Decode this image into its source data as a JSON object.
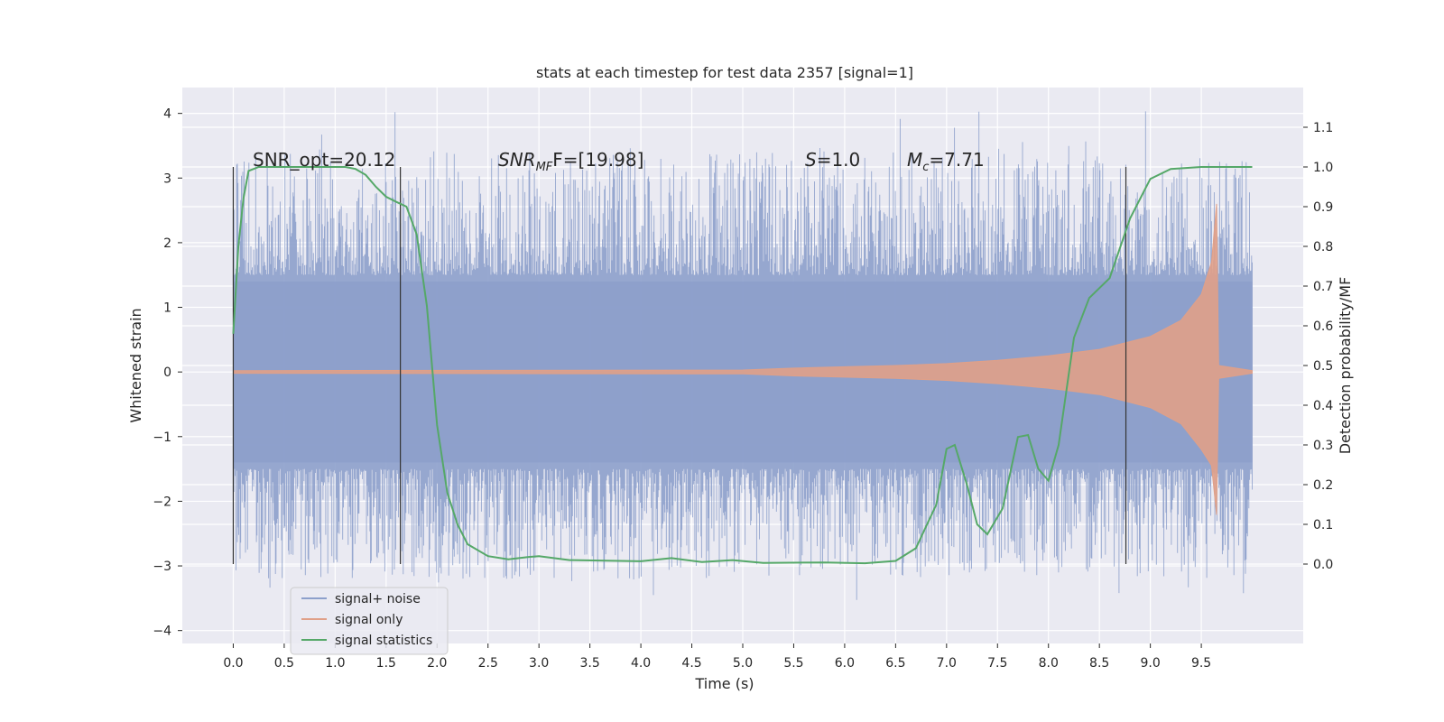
{
  "chart_data": {
    "type": "line",
    "title": "stats at each timestep for test data 2357 [signal=1]",
    "xlabel": "Time (s)",
    "ylabel": "Whitened strain",
    "y2label": "Detection probability/MF",
    "xlim": [
      -0.5,
      10.5
    ],
    "ylim": [
      -4.2,
      4.4
    ],
    "y2lim": [
      -0.2,
      1.2
    ],
    "x_ticks": [
      "0.0",
      "0.5",
      "1.0",
      "1.5",
      "2.0",
      "2.5",
      "3.0",
      "3.5",
      "4.0",
      "4.5",
      "5.0",
      "5.5",
      "6.0",
      "6.5",
      "7.0",
      "7.5",
      "8.0",
      "8.5",
      "9.0",
      "9.5"
    ],
    "y_ticks": [
      "4",
      "3",
      "2",
      "1",
      "0",
      "−1",
      "−2",
      "−3",
      "−4"
    ],
    "y2_ticks": [
      "1.1",
      "1.0",
      "0.9",
      "0.8",
      "0.7",
      "0.6",
      "0.5",
      "0.4",
      "0.3",
      "0.2",
      "0.1",
      "0.0"
    ],
    "grid": true,
    "legend_position": "lower-left",
    "annotations": {
      "snr_opt": "SNR_opt=20.12",
      "snr_mf_italic": "SNR",
      "snr_mf_sub": "MF",
      "snr_mf_rest": "F=[19.98]",
      "s_italic": "S",
      "s_rest": "=1.0",
      "mc_italic": "M",
      "mc_sub": "c",
      "mc_rest": "=7.71"
    },
    "vertical_markers_s": [
      0.0,
      1.64,
      8.76
    ],
    "series": [
      {
        "name": "signal+ noise",
        "color": "#8da0cb",
        "envelope": {
          "t": [
            0.0,
            10.0
          ],
          "core_amp": 1.4,
          "spike_max": 4.05,
          "spike_min": -3.65
        }
      },
      {
        "name": "signal only",
        "color": "#e0a088",
        "chirp_envelope": [
          [
            0.0,
            0.02
          ],
          [
            5.0,
            0.03
          ],
          [
            5.5,
            0.06
          ],
          [
            6.0,
            0.08
          ],
          [
            6.5,
            0.1
          ],
          [
            7.0,
            0.13
          ],
          [
            7.5,
            0.18
          ],
          [
            8.0,
            0.25
          ],
          [
            8.5,
            0.35
          ],
          [
            9.0,
            0.55
          ],
          [
            9.3,
            0.8
          ],
          [
            9.5,
            1.2
          ],
          [
            9.6,
            1.7
          ],
          [
            9.65,
            2.6
          ],
          [
            9.67,
            0.1
          ],
          [
            10.0,
            0.02
          ]
        ]
      },
      {
        "name": "signal statistics",
        "color": "#55a868",
        "points": [
          [
            0.0,
            0.58
          ],
          [
            0.05,
            0.8
          ],
          [
            0.1,
            0.92
          ],
          [
            0.15,
            0.99
          ],
          [
            0.25,
            1.0
          ],
          [
            0.5,
            1.0
          ],
          [
            0.8,
            1.0
          ],
          [
            1.1,
            1.0
          ],
          [
            1.2,
            0.995
          ],
          [
            1.3,
            0.98
          ],
          [
            1.4,
            0.95
          ],
          [
            1.5,
            0.925
          ],
          [
            1.6,
            0.912
          ],
          [
            1.7,
            0.9
          ],
          [
            1.8,
            0.83
          ],
          [
            1.9,
            0.65
          ],
          [
            2.0,
            0.35
          ],
          [
            2.1,
            0.18
          ],
          [
            2.2,
            0.1
          ],
          [
            2.3,
            0.05
          ],
          [
            2.5,
            0.02
          ],
          [
            2.7,
            0.012
          ],
          [
            2.9,
            0.018
          ],
          [
            3.0,
            0.02
          ],
          [
            3.3,
            0.01
          ],
          [
            4.0,
            0.007
          ],
          [
            4.3,
            0.015
          ],
          [
            4.6,
            0.005
          ],
          [
            4.9,
            0.01
          ],
          [
            5.2,
            0.003
          ],
          [
            5.8,
            0.004
          ],
          [
            6.2,
            0.002
          ],
          [
            6.5,
            0.008
          ],
          [
            6.7,
            0.04
          ],
          [
            6.9,
            0.15
          ],
          [
            7.0,
            0.29
          ],
          [
            7.08,
            0.3
          ],
          [
            7.2,
            0.2
          ],
          [
            7.3,
            0.1
          ],
          [
            7.4,
            0.075
          ],
          [
            7.55,
            0.14
          ],
          [
            7.7,
            0.32
          ],
          [
            7.8,
            0.325
          ],
          [
            7.9,
            0.24
          ],
          [
            8.0,
            0.21
          ],
          [
            8.1,
            0.3
          ],
          [
            8.25,
            0.57
          ],
          [
            8.4,
            0.67
          ],
          [
            8.6,
            0.72
          ],
          [
            8.8,
            0.87
          ],
          [
            9.0,
            0.97
          ],
          [
            9.2,
            0.995
          ],
          [
            9.5,
            1.0
          ],
          [
            10.0,
            1.0
          ]
        ]
      }
    ]
  }
}
